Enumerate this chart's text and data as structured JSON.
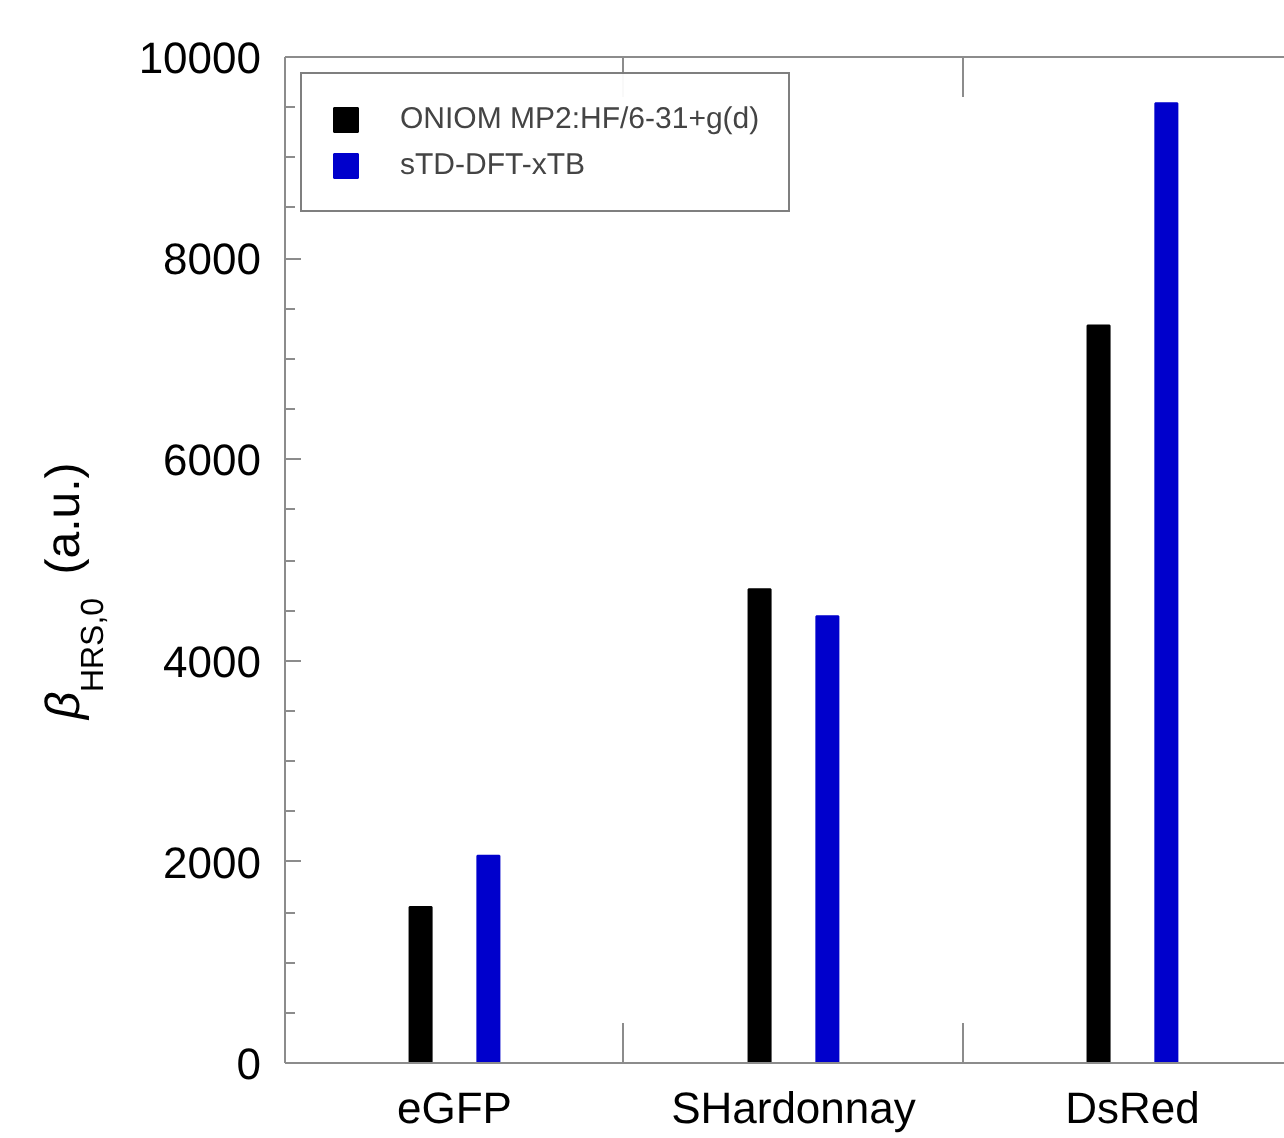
{
  "chart_data": {
    "type": "bar",
    "ylabel": "β$_{HRS,0}$ (a.u.)",
    "categories": [
      "eGFP",
      "SHardonnay",
      "DsRed"
    ],
    "series": [
      {
        "name": "ONIOM MP2:HF/6-31+g(d)",
        "color": "#000000",
        "values": [
          1550,
          4710,
          7330
        ]
      },
      {
        "name": "sTD-DFT-xTB",
        "color": "#0000cc",
        "values": [
          2060,
          4440,
          9540
        ]
      }
    ],
    "ylim": [
      0,
      10000
    ],
    "yticks": [
      0,
      2000,
      4000,
      6000,
      8000,
      10000
    ],
    "grid": false,
    "legend": "top left"
  }
}
